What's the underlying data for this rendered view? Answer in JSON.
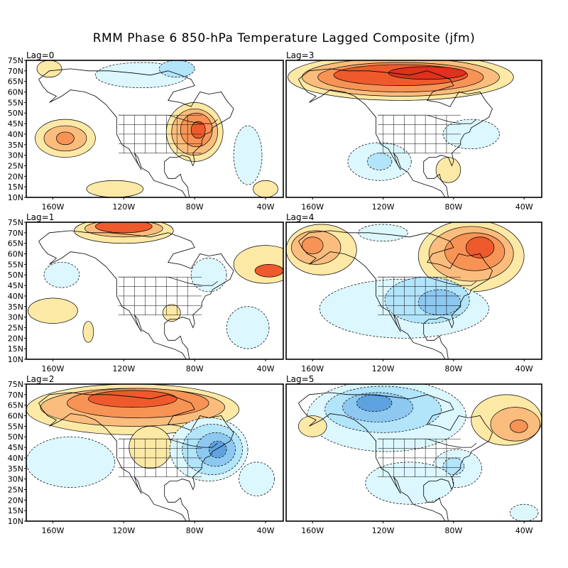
{
  "title": "RMM Phase 6 850-hPa Temperature Lagged Composite (jfm)",
  "lat_labels": [
    "75N",
    "70N",
    "65N",
    "60N",
    "55N",
    "50N",
    "45N",
    "40N",
    "35N",
    "30N",
    "25N",
    "20N",
    "15N",
    "10N"
  ],
  "lon_labels": [
    "160W",
    "120W",
    "80W",
    "40W"
  ],
  "colors": {
    "warm1": "#fde9a6",
    "warm2": "#fbbd7d",
    "warm3": "#f79355",
    "warm4": "#ef5a2d",
    "warm5": "#e0301e",
    "cool1": "#dcf7fd",
    "cool2": "#b2e4fa",
    "cool3": "#8dc8f1",
    "cool4": "#5fa2e0",
    "land_lines": "#000000",
    "frame": "#000000"
  },
  "panels": [
    {
      "label": "Lag=0",
      "features": [
        {
          "level": "warm1",
          "lon": -153,
          "lat": 38,
          "rlon": 17,
          "rlat": 9
        },
        {
          "level": "warm2",
          "lon": -153,
          "lat": 38,
          "rlon": 12,
          "rlat": 6
        },
        {
          "level": "warm3",
          "lon": -153,
          "lat": 38,
          "rlon": 5,
          "rlat": 3
        },
        {
          "level": "warm1",
          "lon": -80,
          "lat": 41,
          "rlon": 16,
          "rlat": 14
        },
        {
          "level": "warm2",
          "lon": -80,
          "lat": 41,
          "rlon": 13,
          "rlat": 11
        },
        {
          "level": "warm3",
          "lon": -79,
          "lat": 42,
          "rlon": 9,
          "rlat": 8
        },
        {
          "level": "warm4",
          "lon": -78,
          "lat": 42,
          "rlon": 4,
          "rlat": 4
        },
        {
          "level": "cool1",
          "lon": -110,
          "lat": 68,
          "rlon": 26,
          "rlat": 6
        },
        {
          "level": "cool2",
          "lon": -90,
          "lat": 71,
          "rlon": 10,
          "rlat": 4
        },
        {
          "level": "warm1",
          "lon": -162,
          "lat": 71,
          "rlon": 7,
          "rlat": 4
        },
        {
          "level": "warm1",
          "lon": -125,
          "lat": 14,
          "rlon": 16,
          "rlat": 4
        },
        {
          "level": "cool1",
          "lon": -50,
          "lat": 30,
          "rlon": 8,
          "rlat": 14
        },
        {
          "level": "warm1",
          "lon": -40,
          "lat": 14,
          "rlon": 7,
          "rlat": 4
        }
      ]
    },
    {
      "label": "Lag=3",
      "features": [
        {
          "level": "warm1",
          "lon": -110,
          "lat": 67,
          "rlon": 64,
          "rlat": 11
        },
        {
          "level": "warm2",
          "lon": -110,
          "lat": 67,
          "rlon": 56,
          "rlat": 9
        },
        {
          "level": "warm3",
          "lon": -110,
          "lat": 67,
          "rlon": 47,
          "rlat": 7
        },
        {
          "level": "warm4",
          "lon": -110,
          "lat": 68,
          "rlon": 38,
          "rlat": 5
        },
        {
          "level": "warm5",
          "lon": -95,
          "lat": 69,
          "rlon": 22,
          "rlat": 3
        },
        {
          "level": "cool1",
          "lon": -122,
          "lat": 27,
          "rlon": 18,
          "rlat": 9
        },
        {
          "level": "cool2",
          "lon": -122,
          "lat": 27,
          "rlon": 7,
          "rlat": 4
        },
        {
          "level": "cool1",
          "lon": -70,
          "lat": 40,
          "rlon": 16,
          "rlat": 7
        },
        {
          "level": "warm1",
          "lon": -83,
          "lat": 23,
          "rlon": 7,
          "rlat": 6
        }
      ]
    },
    {
      "label": "Lag=1",
      "features": [
        {
          "level": "warm1",
          "lon": -120,
          "lat": 71,
          "rlon": 28,
          "rlat": 6
        },
        {
          "level": "warm2",
          "lon": -120,
          "lat": 72,
          "rlon": 22,
          "rlat": 4
        },
        {
          "level": "warm4",
          "lon": -120,
          "lat": 73,
          "rlon": 16,
          "rlat": 3
        },
        {
          "level": "warm1",
          "lon": -40,
          "lat": 55,
          "rlon": 18,
          "rlat": 9
        },
        {
          "level": "warm4",
          "lon": -38,
          "lat": 52,
          "rlon": 8,
          "rlat": 3
        },
        {
          "level": "cool1",
          "lon": -72,
          "lat": 50,
          "rlon": 10,
          "rlat": 8
        },
        {
          "level": "cool1",
          "lon": -155,
          "lat": 50,
          "rlon": 10,
          "rlat": 6
        },
        {
          "level": "warm1",
          "lon": -160,
          "lat": 33,
          "rlon": 14,
          "rlat": 6
        },
        {
          "level": "warm1",
          "lon": -93,
          "lat": 32,
          "rlon": 5,
          "rlat": 4
        },
        {
          "level": "cool1",
          "lon": -50,
          "lat": 25,
          "rlon": 12,
          "rlat": 10
        },
        {
          "level": "warm1",
          "lon": -140,
          "lat": 23,
          "rlon": 3,
          "rlat": 5
        }
      ]
    },
    {
      "label": "Lag=4",
      "features": [
        {
          "level": "warm1",
          "lon": -70,
          "lat": 59,
          "rlon": 30,
          "rlat": 17
        },
        {
          "level": "warm2",
          "lon": -70,
          "lat": 60,
          "rlon": 24,
          "rlat": 13
        },
        {
          "level": "warm3",
          "lon": -68,
          "lat": 61,
          "rlon": 17,
          "rlat": 9
        },
        {
          "level": "warm4",
          "lon": -65,
          "lat": 63,
          "rlon": 8,
          "rlat": 5
        },
        {
          "level": "warm1",
          "lon": -155,
          "lat": 62,
          "rlon": 20,
          "rlat": 12
        },
        {
          "level": "warm2",
          "lon": -158,
          "lat": 63,
          "rlon": 14,
          "rlat": 8
        },
        {
          "level": "warm3",
          "lon": -160,
          "lat": 64,
          "rlon": 6,
          "rlat": 4
        },
        {
          "level": "cool1",
          "lon": -108,
          "lat": 34,
          "rlon": 48,
          "rlat": 14
        },
        {
          "level": "cool2",
          "lon": -95,
          "lat": 38,
          "rlon": 24,
          "rlat": 11
        },
        {
          "level": "cool3",
          "lon": -88,
          "lat": 37,
          "rlon": 12,
          "rlat": 6
        },
        {
          "level": "cool1",
          "lon": -120,
          "lat": 70,
          "rlon": 14,
          "rlat": 4
        }
      ]
    },
    {
      "label": "Lag=2",
      "features": [
        {
          "level": "warm1",
          "lon": -115,
          "lat": 63,
          "rlon": 60,
          "rlat": 12
        },
        {
          "level": "warm2",
          "lon": -115,
          "lat": 64,
          "rlon": 52,
          "rlat": 9
        },
        {
          "level": "warm3",
          "lon": -112,
          "lat": 66,
          "rlon": 40,
          "rlat": 7
        },
        {
          "level": "warm4",
          "lon": -115,
          "lat": 68,
          "rlon": 25,
          "rlat": 4
        },
        {
          "level": "warm1",
          "lon": -105,
          "lat": 45,
          "rlon": 12,
          "rlat": 10
        },
        {
          "level": "cool1",
          "lon": -72,
          "lat": 44,
          "rlon": 22,
          "rlat": 15
        },
        {
          "level": "cool2",
          "lon": -70,
          "lat": 44,
          "rlon": 17,
          "rlat": 12
        },
        {
          "level": "cool3",
          "lon": -68,
          "lat": 44,
          "rlon": 11,
          "rlat": 8
        },
        {
          "level": "cool4",
          "lon": -67,
          "lat": 44,
          "rlon": 5,
          "rlat": 4
        },
        {
          "level": "cool1",
          "lon": -150,
          "lat": 38,
          "rlon": 25,
          "rlat": 12
        },
        {
          "level": "cool1",
          "lon": -45,
          "lat": 30,
          "rlon": 10,
          "rlat": 8
        }
      ]
    },
    {
      "label": "Lag=5",
      "features": [
        {
          "level": "cool1",
          "lon": -118,
          "lat": 60,
          "rlon": 45,
          "rlat": 17
        },
        {
          "level": "cool2",
          "lon": -120,
          "lat": 63,
          "rlon": 33,
          "rlat": 11
        },
        {
          "level": "cool3",
          "lon": -123,
          "lat": 64,
          "rlon": 20,
          "rlat": 7
        },
        {
          "level": "cool4",
          "lon": -125,
          "lat": 66,
          "rlon": 10,
          "rlat": 4
        },
        {
          "level": "warm1",
          "lon": -50,
          "lat": 58,
          "rlon": 20,
          "rlat": 12
        },
        {
          "level": "warm2",
          "lon": -45,
          "lat": 56,
          "rlon": 14,
          "rlat": 8
        },
        {
          "level": "warm3",
          "lon": -43,
          "lat": 55,
          "rlon": 5,
          "rlat": 3
        },
        {
          "level": "cool1",
          "lon": -78,
          "lat": 35,
          "rlon": 14,
          "rlat": 9
        },
        {
          "level": "cool2",
          "lon": -80,
          "lat": 36,
          "rlon": 6,
          "rlat": 4
        },
        {
          "level": "cool1",
          "lon": -105,
          "lat": 28,
          "rlon": 25,
          "rlat": 10
        },
        {
          "level": "cool1",
          "lon": -40,
          "lat": 14,
          "rlon": 8,
          "rlat": 4
        },
        {
          "level": "warm1",
          "lon": -160,
          "lat": 55,
          "rlon": 8,
          "rlat": 5
        }
      ]
    }
  ]
}
